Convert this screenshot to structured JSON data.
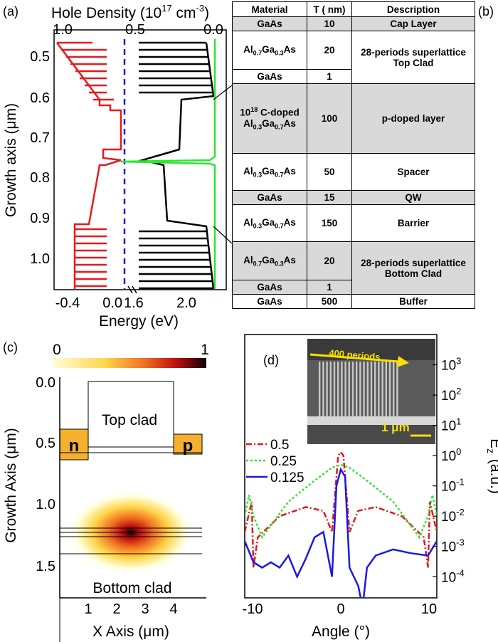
{
  "panel_labels": {
    "a": "(a)",
    "b": "(b)",
    "c": "(c)",
    "d": "(d)"
  },
  "panel_a": {
    "top_axis_label": "Hole Density (10",
    "top_axis_exp": "17",
    "top_axis_unit": " cm",
    "top_axis_unit_exp": "-3",
    "top_axis_close": ")",
    "top_ticks": [
      "1.0",
      "0.5",
      "0.0"
    ],
    "y_label": "Growth axis (μm)",
    "y_ticks": [
      "0.5",
      "0.6",
      "0.7",
      "0.8",
      "0.9",
      "1.0"
    ],
    "x_label": "Energy (eV)",
    "x_ticks": [
      "-0.4",
      "0.0",
      "1.6",
      "2.0"
    ],
    "colors": {
      "valence": "#e8191b",
      "conduction": "#000000",
      "density": "#2ee62e",
      "fermi": "#1a1ae6"
    }
  },
  "table": {
    "headers": [
      "Material",
      "T ( nm)",
      "Description"
    ],
    "rows": [
      {
        "material": "GaAs",
        "t": "10",
        "desc": "Cap Layer",
        "shade": true
      },
      {
        "material": "Al0.7Ga0.3As",
        "t": "20",
        "desc": "28-periods superlattice Top Clad",
        "shade": false
      },
      {
        "material": "GaAs",
        "t": "1",
        "desc": "",
        "shade": false
      },
      {
        "material": "10^18 C-doped Al0.3Ga0.7As",
        "t": "100",
        "desc": "p-doped layer",
        "shade": true
      },
      {
        "material": "Al0.3Ga0.7As",
        "t": "50",
        "desc": "Spacer",
        "shade": false
      },
      {
        "material": "GaAs",
        "t": "15",
        "desc": "QW",
        "shade": true
      },
      {
        "material": "Al0.3Ga0.7As",
        "t": "150",
        "desc": "Barrier",
        "shade": false
      },
      {
        "material": "Al0.7Ga0.3As",
        "t": "20",
        "desc": "28-periods superlattice Bottom Clad",
        "shade": true
      },
      {
        "material": "GaAs",
        "t": "1",
        "desc": "",
        "shade": true
      },
      {
        "material": "GaAs",
        "t": "500",
        "desc": "Buffer",
        "shade": false
      }
    ]
  },
  "panel_c": {
    "colorbar_min": "0",
    "colorbar_max": "1",
    "top_label": "Top clad",
    "bottom_label": "Bottom clad",
    "n_label": "n",
    "p_label": "p",
    "y_label": "Growth Axis (μm)",
    "y_ticks": [
      "0.0",
      "0.5",
      "1.0",
      "1.5"
    ],
    "x_label": "X Axis (μm)",
    "x_ticks": [
      "1",
      "2",
      "3",
      "4"
    ]
  },
  "panel_d": {
    "inset_label": "400 periods",
    "scale_label": "1 μm",
    "x_label": "Angle (°)",
    "x_ticks": [
      "-10",
      "0",
      "10"
    ],
    "y_label": "E",
    "y_label_sub": "z",
    "y_label_sup": "2",
    "y_label_unit": "(a.u.)",
    "y_ticks": [
      "10",
      "10",
      "10",
      "10",
      "10",
      "10",
      "10",
      "10"
    ],
    "y_tick_exps": [
      "3",
      "2",
      "1",
      "0",
      "-1",
      "-2",
      "-3",
      "-4"
    ],
    "legend": [
      "0.5",
      "0.25",
      "0.125"
    ]
  },
  "chart_data": [
    {
      "type": "line",
      "title": "",
      "xlabel": "Energy (eV)",
      "ylabel": "Growth axis (μm)",
      "ylim": [
        1.07,
        0.45
      ],
      "series": [
        {
          "y": [
            0.45,
            0.6,
            0.62,
            0.73,
            0.745,
            0.755,
            0.765,
            0.9,
            0.915,
            1.07
          ],
          "x": [
            -0.42,
            -0.12,
            -0.12,
            -0.12,
            -0.12,
            -0.02,
            -0.32,
            -0.32,
            -0.42,
            -0.42
          ]
        },
        {
          "y": [
            0.45,
            0.6,
            0.62,
            0.73,
            0.745,
            0.755,
            0.765,
            0.9,
            0.915,
            1.07
          ],
          "x": [
            2.05,
            2.1,
            1.85,
            1.85,
            1.85,
            1.55,
            1.7,
            1.7,
            2.05,
            2.1
          ]
        }
      ]
    },
    {
      "type": "line",
      "title": "",
      "xlabel": "Angle (°)",
      "ylabel": "Ez2 (a.u.)",
      "xlim": [
        -11,
        11
      ],
      "ylim": [
        2e-05,
        10000
      ],
      "y_scale": "log",
      "series": [
        {
          "name": "0.5",
          "x": [
            -11,
            -10.2,
            -10,
            -9.5,
            -7,
            -4,
            -2,
            -1,
            -0.3,
            0,
            0.3,
            1,
            2,
            4,
            7,
            9.5,
            10,
            10.2,
            11
          ],
          "y": [
            0.003,
            0.03,
            0.0002,
            0.002,
            0.01,
            0.02,
            0.015,
            0.003,
            1.0,
            1.3,
            1.0,
            0.003,
            0.015,
            0.02,
            0.01,
            0.002,
            0.0002,
            0.03,
            0.003
          ]
        },
        {
          "name": "0.25",
          "x": [
            -11,
            -10.5,
            -10,
            -9,
            -6,
            -3,
            -1,
            0,
            1,
            3,
            6,
            9,
            10,
            10.5,
            11
          ],
          "y": [
            0.01,
            0.05,
            0.01,
            0.002,
            0.03,
            0.15,
            0.4,
            0.5,
            0.4,
            0.15,
            0.03,
            0.002,
            0.01,
            0.05,
            0.01
          ]
        },
        {
          "name": "0.125",
          "x": [
            -11,
            -10,
            -9,
            -8,
            -7,
            -6,
            -5,
            -4,
            -3,
            -2,
            -1,
            -0.5,
            0,
            0.5,
            1,
            2,
            2.5,
            3,
            4,
            6,
            8,
            10,
            11
          ],
          "y": [
            0.0015,
            0.0003,
            0.0002,
            0.0003,
            0.0002,
            0.0005,
            0.0001,
            0.0004,
            0.002,
            0.003,
            0.0001,
            0.1,
            0.35,
            0.2,
            0.0002,
            5e-05,
            1e-05,
            0.0002,
            0.0005,
            0.0008,
            0.0006,
            0.0005,
            0.0015
          ]
        }
      ]
    }
  ]
}
